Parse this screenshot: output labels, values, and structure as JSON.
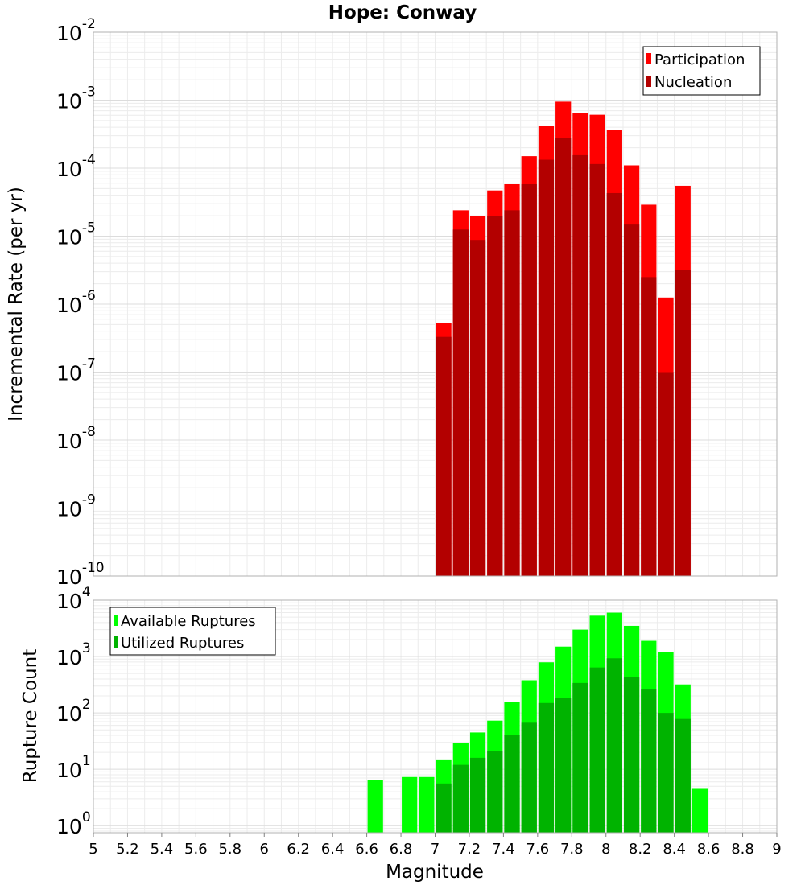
{
  "chart_data": [
    {
      "type": "bar",
      "title": "Hope: Conway",
      "ylabel": "Incremental Rate (per yr)",
      "xlabel": "",
      "xlim": [
        5,
        9
      ],
      "ylim": [
        1e-10,
        0.01
      ],
      "yscale": "log",
      "grid": true,
      "legend_position": "top-right",
      "bin_width": 0.1,
      "y_tick_labels": [
        {
          "base": "10",
          "exp": "-10",
          "value": 1e-10
        },
        {
          "base": "10",
          "exp": "-9",
          "value": 1e-09
        },
        {
          "base": "10",
          "exp": "-8",
          "value": 1e-08
        },
        {
          "base": "10",
          "exp": "-7",
          "value": 1e-07
        },
        {
          "base": "10",
          "exp": "-6",
          "value": 1e-06
        },
        {
          "base": "10",
          "exp": "-5",
          "value": 1e-05
        },
        {
          "base": "10",
          "exp": "-4",
          "value": 0.0001
        },
        {
          "base": "10",
          "exp": "-3",
          "value": 0.001
        },
        {
          "base": "10",
          "exp": "-2",
          "value": 0.01
        }
      ],
      "series": [
        {
          "name": "Participation",
          "color": "#ff0000",
          "x": [
            7.05,
            7.15,
            7.25,
            7.35,
            7.45,
            7.55,
            7.65,
            7.75,
            7.85,
            7.95,
            8.05,
            8.15,
            8.25,
            8.35,
            8.45
          ],
          "values": [
            5.2e-07,
            2.4e-05,
            2e-05,
            4.7e-05,
            5.8e-05,
            0.00015,
            0.00042,
            0.00095,
            0.00065,
            0.00061,
            0.00036,
            0.00011,
            2.9e-05,
            1.25e-06,
            5.5e-05
          ]
        },
        {
          "name": "Nucleation",
          "color": "#b30000",
          "x": [
            7.05,
            7.15,
            7.25,
            7.35,
            7.45,
            7.55,
            7.65,
            7.75,
            7.85,
            7.95,
            8.05,
            8.15,
            8.25,
            8.35,
            8.45
          ],
          "values": [
            3.3e-07,
            1.25e-05,
            8.8e-06,
            2e-05,
            2.4e-05,
            5.8e-05,
            0.000133,
            0.00028,
            0.000155,
            0.000115,
            4.3e-05,
            1.48e-05,
            2.5e-06,
            1e-07,
            3.2e-06
          ]
        }
      ]
    },
    {
      "type": "bar",
      "title": "",
      "ylabel": "Rupture Count",
      "xlabel": "Magnitude",
      "xlim": [
        5,
        9
      ],
      "ylim": [
        0.75,
        10000
      ],
      "yscale": "log",
      "grid": true,
      "legend_position": "top-left",
      "bin_width": 0.1,
      "x_tick_labels": [
        "5",
        "5.2",
        "5.4",
        "5.6",
        "5.8",
        "6",
        "6.2",
        "6.4",
        "6.6",
        "6.8",
        "7",
        "7.2",
        "7.4",
        "7.6",
        "7.8",
        "8",
        "8.2",
        "8.4",
        "8.6",
        "8.8",
        "9"
      ],
      "x_tick_values": [
        5,
        5.2,
        5.4,
        5.6,
        5.8,
        6,
        6.2,
        6.4,
        6.6,
        6.8,
        7,
        7.2,
        7.4,
        7.6,
        7.8,
        8,
        8.2,
        8.4,
        8.6,
        8.8,
        9
      ],
      "y_tick_labels": [
        {
          "base": "10",
          "exp": "0",
          "value": 1
        },
        {
          "base": "10",
          "exp": "1",
          "value": 10
        },
        {
          "base": "10",
          "exp": "2",
          "value": 100
        },
        {
          "base": "10",
          "exp": "3",
          "value": 1000
        },
        {
          "base": "10",
          "exp": "4",
          "value": 10000
        }
      ],
      "series": [
        {
          "name": "Available Ruptures",
          "color": "#00ff00",
          "x": [
            6.65,
            6.85,
            6.95,
            7.05,
            7.15,
            7.25,
            7.35,
            7.45,
            7.55,
            7.65,
            7.75,
            7.85,
            7.95,
            8.05,
            8.15,
            8.25,
            8.35,
            8.45,
            8.55
          ],
          "values": [
            6.5,
            7.3,
            7.3,
            14.5,
            29,
            45,
            73,
            155,
            380,
            790,
            1500,
            3000,
            5300,
            6000,
            3500,
            1900,
            1200,
            320,
            4.5
          ]
        },
        {
          "name": "Utilized Ruptures",
          "color": "#00b300",
          "x": [
            7.05,
            7.15,
            7.25,
            7.35,
            7.45,
            7.55,
            7.65,
            7.75,
            7.85,
            7.95,
            8.05,
            8.15,
            8.25,
            8.35,
            8.45
          ],
          "values": [
            5.6,
            12,
            16,
            21,
            40,
            67,
            150,
            185,
            340,
            640,
            930,
            430,
            260,
            100,
            78
          ]
        }
      ]
    }
  ]
}
